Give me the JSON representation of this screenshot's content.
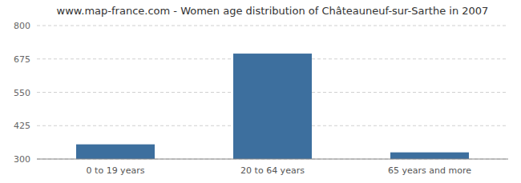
{
  "chart_data": {
    "type": "bar",
    "title": "www.map-france.com - Women age distribution of Châteauneuf-sur-Sarthe in 2007",
    "categories": [
      "0 to 19 years",
      "20 to 64 years",
      "65 years and more"
    ],
    "values": [
      355,
      695,
      325
    ],
    "color": "#3d6f9e",
    "ylim": [
      300,
      800
    ],
    "yticks": [
      300,
      425,
      550,
      675,
      800
    ],
    "grid": true
  }
}
